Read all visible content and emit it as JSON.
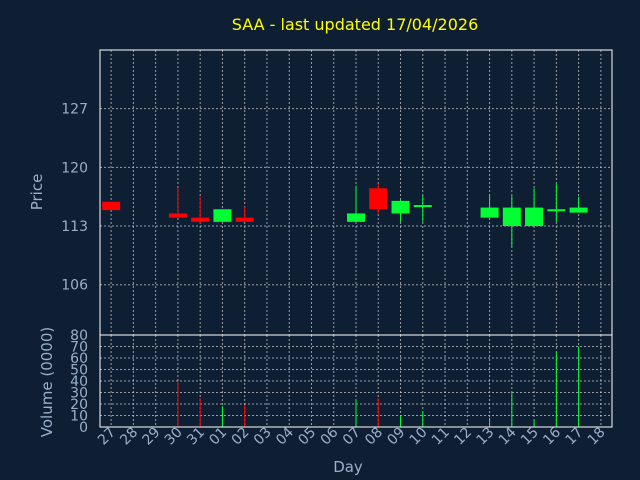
{
  "chart_data": {
    "type": "candlestick",
    "title": "SAA - last updated 17/04/2026",
    "xlabel": "Day",
    "ylabel": "Price",
    "volume_label": "Volume (0000)",
    "x_ticks": [
      "27",
      "28",
      "29",
      "30",
      "31",
      "01",
      "02",
      "03",
      "04",
      "05",
      "06",
      "07",
      "08",
      "09",
      "10",
      "11",
      "12",
      "13",
      "14",
      "15",
      "16",
      "17",
      "18"
    ],
    "price_axis": {
      "min": 100,
      "max": 134,
      "ticks": [
        106,
        113,
        120,
        127
      ]
    },
    "volume_axis": {
      "min": 0,
      "max": 80,
      "ticks": [
        0,
        10,
        20,
        30,
        40,
        50,
        60,
        70,
        80
      ]
    },
    "grid": true,
    "up_color": "#00ff33",
    "down_color": "#ff0000",
    "candles": [
      {
        "date": "27",
        "open": 115.9,
        "high": 115.9,
        "low": 114.9,
        "close": 114.9,
        "volume": 0
      },
      {
        "date": "30",
        "open": 114.5,
        "high": 117.5,
        "low": 114.0,
        "close": 114.0,
        "volume": 40
      },
      {
        "date": "31",
        "open": 114.0,
        "high": 116.5,
        "low": 113.3,
        "close": 113.5,
        "volume": 25
      },
      {
        "date": "01",
        "open": 113.5,
        "high": 115.0,
        "low": 113.5,
        "close": 115.0,
        "volume": 18
      },
      {
        "date": "02",
        "open": 114.0,
        "high": 115.3,
        "low": 113.5,
        "close": 113.5,
        "volume": 19
      },
      {
        "date": "07",
        "open": 113.5,
        "high": 117.8,
        "low": 113.5,
        "close": 114.5,
        "volume": 24
      },
      {
        "date": "08",
        "open": 117.5,
        "high": 118.0,
        "low": 114.5,
        "close": 115.0,
        "volume": 25
      },
      {
        "date": "09",
        "open": 114.5,
        "high": 116.2,
        "low": 113.5,
        "close": 116.0,
        "volume": 10
      },
      {
        "date": "10",
        "open": 115.5,
        "high": 116.7,
        "low": 113.5,
        "close": 115.5,
        "volume": 13
      },
      {
        "date": "13",
        "open": 114.0,
        "high": 116.7,
        "low": 114.0,
        "close": 115.2,
        "volume": 8
      },
      {
        "date": "14",
        "open": 113.0,
        "high": 116.6,
        "low": 110.5,
        "close": 115.2,
        "volume": 30
      },
      {
        "date": "15",
        "open": 113.0,
        "high": 117.5,
        "low": 113.0,
        "close": 115.2,
        "volume": 6
      },
      {
        "date": "16",
        "open": 115.0,
        "high": 118.0,
        "low": 113.5,
        "close": 115.0,
        "volume": 65
      },
      {
        "date": "17",
        "open": 114.6,
        "high": 116.5,
        "low": 114.6,
        "close": 115.2,
        "volume": 70
      }
    ]
  }
}
